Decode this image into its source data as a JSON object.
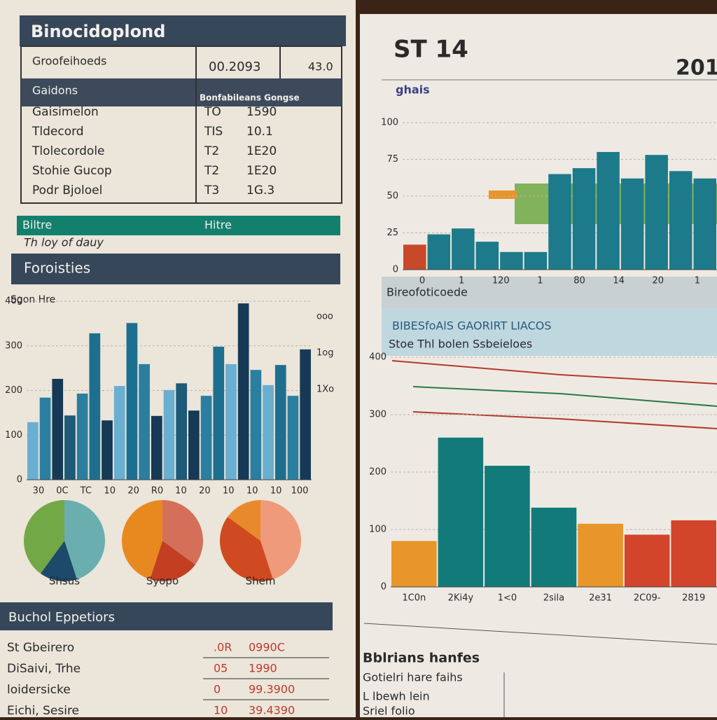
{
  "left_page": {
    "header": "Binocidoplond",
    "table": {
      "title_row": [
        "Groofeihoeds",
        "00.2093",
        "43.0"
      ],
      "header_row": [
        "Gaidons",
        "Bonfabileans Gongse"
      ],
      "rows": [
        [
          "Gaisimelon",
          "TO",
          "1590"
        ],
        [
          "Tldecord",
          "TIS",
          "10.1"
        ],
        [
          "Tlolecordole",
          "T2",
          "1E20"
        ],
        [
          "Stohie Gucop",
          "T2",
          "1E20"
        ],
        [
          "Podr Bjoloel",
          "T3",
          "1G.3"
        ]
      ]
    },
    "green_band": [
      "Biltre",
      "Hitre"
    ],
    "caption": "Th loy of dauy",
    "section": "Foroisties",
    "bar_chart": {
      "type": "bar",
      "ylabel": "Sgon Hre",
      "values": [
        129,
        184,
        226,
        144,
        193,
        328,
        133,
        210,
        351,
        259,
        143,
        201,
        216,
        155,
        188,
        298,
        259,
        395,
        246,
        212,
        257,
        188,
        292
      ],
      "colors": [
        "#6aaed0",
        "#2a7fa0",
        "#163a55",
        "#1d5b78",
        "#2a7fa0",
        "#1d6f8f",
        "#163a55",
        "#6aaed0",
        "#1d6f8f",
        "#2a7fa0",
        "#163a55",
        "#6aaed0",
        "#1d5b78",
        "#163a55",
        "#2a7fa0",
        "#1d6f8f",
        "#6aaed0",
        "#163a55",
        "#2a7fa0",
        "#6aaed0",
        "#1d6f8f",
        "#2a7fa0",
        "#163a55"
      ],
      "ylim": [
        0,
        400
      ],
      "yticks": [
        0,
        100,
        200,
        300,
        400
      ],
      "xlabels": [
        "30",
        "0C",
        "TC",
        "10",
        "20",
        "R0",
        "10",
        "20",
        "10",
        "10",
        "10",
        "100"
      ],
      "right_labels": [
        "ooo",
        "1og",
        "1Xo"
      ]
    },
    "pies": [
      {
        "type": "pie",
        "label": "Shsus",
        "values": [
          45,
          15,
          40
        ],
        "colors": [
          "#6aaeb0",
          "#1d4a6a",
          "#72a845"
        ]
      },
      {
        "type": "pie",
        "label": "Syopo",
        "values": [
          35,
          20,
          45
        ],
        "colors": [
          "#d4705a",
          "#c43f22",
          "#e8891f"
        ]
      },
      {
        "type": "pie",
        "label": "Shem",
        "values": [
          45,
          40,
          15
        ],
        "colors": [
          "#ef9a7a",
          "#cf4a20",
          "#e88a2c"
        ]
      }
    ],
    "expenses": {
      "title": "Buchol Eppetiors",
      "rows": [
        [
          "St Gbeirero",
          ".0R",
          "0990C"
        ],
        [
          "DiSaivi, Trhe",
          "05",
          "1990"
        ],
        [
          "loidersicke",
          "0",
          "99.3900"
        ],
        [
          "Eichi, Sesire",
          "10",
          "39.4390"
        ]
      ]
    }
  },
  "right_page": {
    "title": "ST 14",
    "year": "201",
    "subtitle": "ghais",
    "top_chart": {
      "type": "bar",
      "values": [
        17,
        24,
        28,
        19,
        12,
        12,
        65,
        69,
        80,
        62,
        78,
        67,
        62
      ],
      "colors": [
        "#c8482a",
        "#1d7a8a",
        "#1d7a8a",
        "#1d7a8a",
        "#1d7a8a",
        "#1d7a8a",
        "#1d7a8a",
        "#1d7a8a",
        "#1d7a8a",
        "#1d7a8a",
        "#1d7a8a",
        "#1d7a8a",
        "#1d7a8a"
      ],
      "ylim": [
        0,
        100
      ],
      "yticks": [
        0,
        25,
        50,
        75,
        100
      ],
      "xlabels": [
        "0",
        "1",
        "120",
        "1",
        "80",
        "14",
        "20",
        "1"
      ]
    },
    "band1": "Bireofoticoede",
    "band2": "BIBESfoAlS GAORIRT LIACOS",
    "chart_title": "Stoe Thl bolen Ssbeieloes",
    "bottom_chart": {
      "type": "bar",
      "values": [
        80,
        260,
        211,
        138,
        110,
        91,
        116
      ],
      "colors": [
        "#e8952a",
        "#137a7a",
        "#137a7a",
        "#137a7a",
        "#e8952a",
        "#d2452a",
        "#d2452a"
      ],
      "ylim": [
        0,
        400
      ],
      "yticks": [
        0,
        100,
        200,
        300,
        400
      ],
      "xlabels": [
        "1C0n",
        "2Ki4y",
        "1<0",
        "2sila",
        "2e31",
        "2C09-",
        "2819"
      ]
    },
    "notes": [
      "Bblrians hanfes",
      "Gotielri hare faihs",
      "L lbewh lein",
      "Sriel folio"
    ]
  }
}
